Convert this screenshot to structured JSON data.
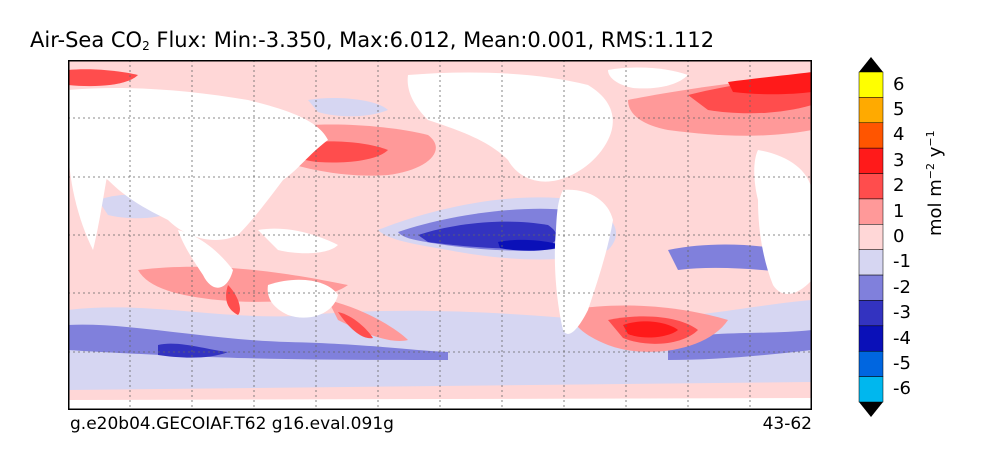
{
  "title": {
    "prefix": "Air-Sea CO",
    "subscript": "2",
    "stats": "Flux: Min:-3.350, Max:6.012, Mean:0.001, RMS:1.112"
  },
  "footer": {
    "left": "g.e20b04.GECOIAF.T62 g16.eval.091g",
    "right": "43-62"
  },
  "colorbar": {
    "labels": [
      "6",
      "5",
      "4",
      "3",
      "2",
      "1",
      "0",
      "-1",
      "-2",
      "-3",
      "-4",
      "-5",
      "-6"
    ],
    "units_main": "mol m",
    "units_exp1": "−2",
    "units_mid": " y",
    "units_exp2": "−1",
    "levels": [
      {
        "range": "5 to 6",
        "color": "#ffff00"
      },
      {
        "range": "4 to 5",
        "color": "#ffaa00"
      },
      {
        "range": "3 to 4",
        "color": "#ff5500"
      },
      {
        "range": "2 to 3",
        "color": "#ff1a1a"
      },
      {
        "range": "1 to 2",
        "color": "#ff4d4d"
      },
      {
        "range": "0 to 1",
        "color": "#ff9999"
      },
      {
        "range": "-1 to 0",
        "color": "#ffd7d7"
      },
      {
        "range": "-2 to -1",
        "color": "#d6d6f2"
      },
      {
        "range": "-3 to -2",
        "color": "#8080dc"
      },
      {
        "range": "-4 to -3",
        "color": "#3333c0"
      },
      {
        "range": "-5 to -4",
        "color": "#0a10b8"
      },
      {
        "range": "-6 to -5",
        "color": "#0066e0"
      },
      {
        "range": "below -6",
        "color": "#00b7ee"
      }
    ],
    "over_color": "#ffff00",
    "under_color": "#00ffff",
    "extend_colors": {
      "top": "#000000",
      "bottom": "#000000"
    }
  }
}
